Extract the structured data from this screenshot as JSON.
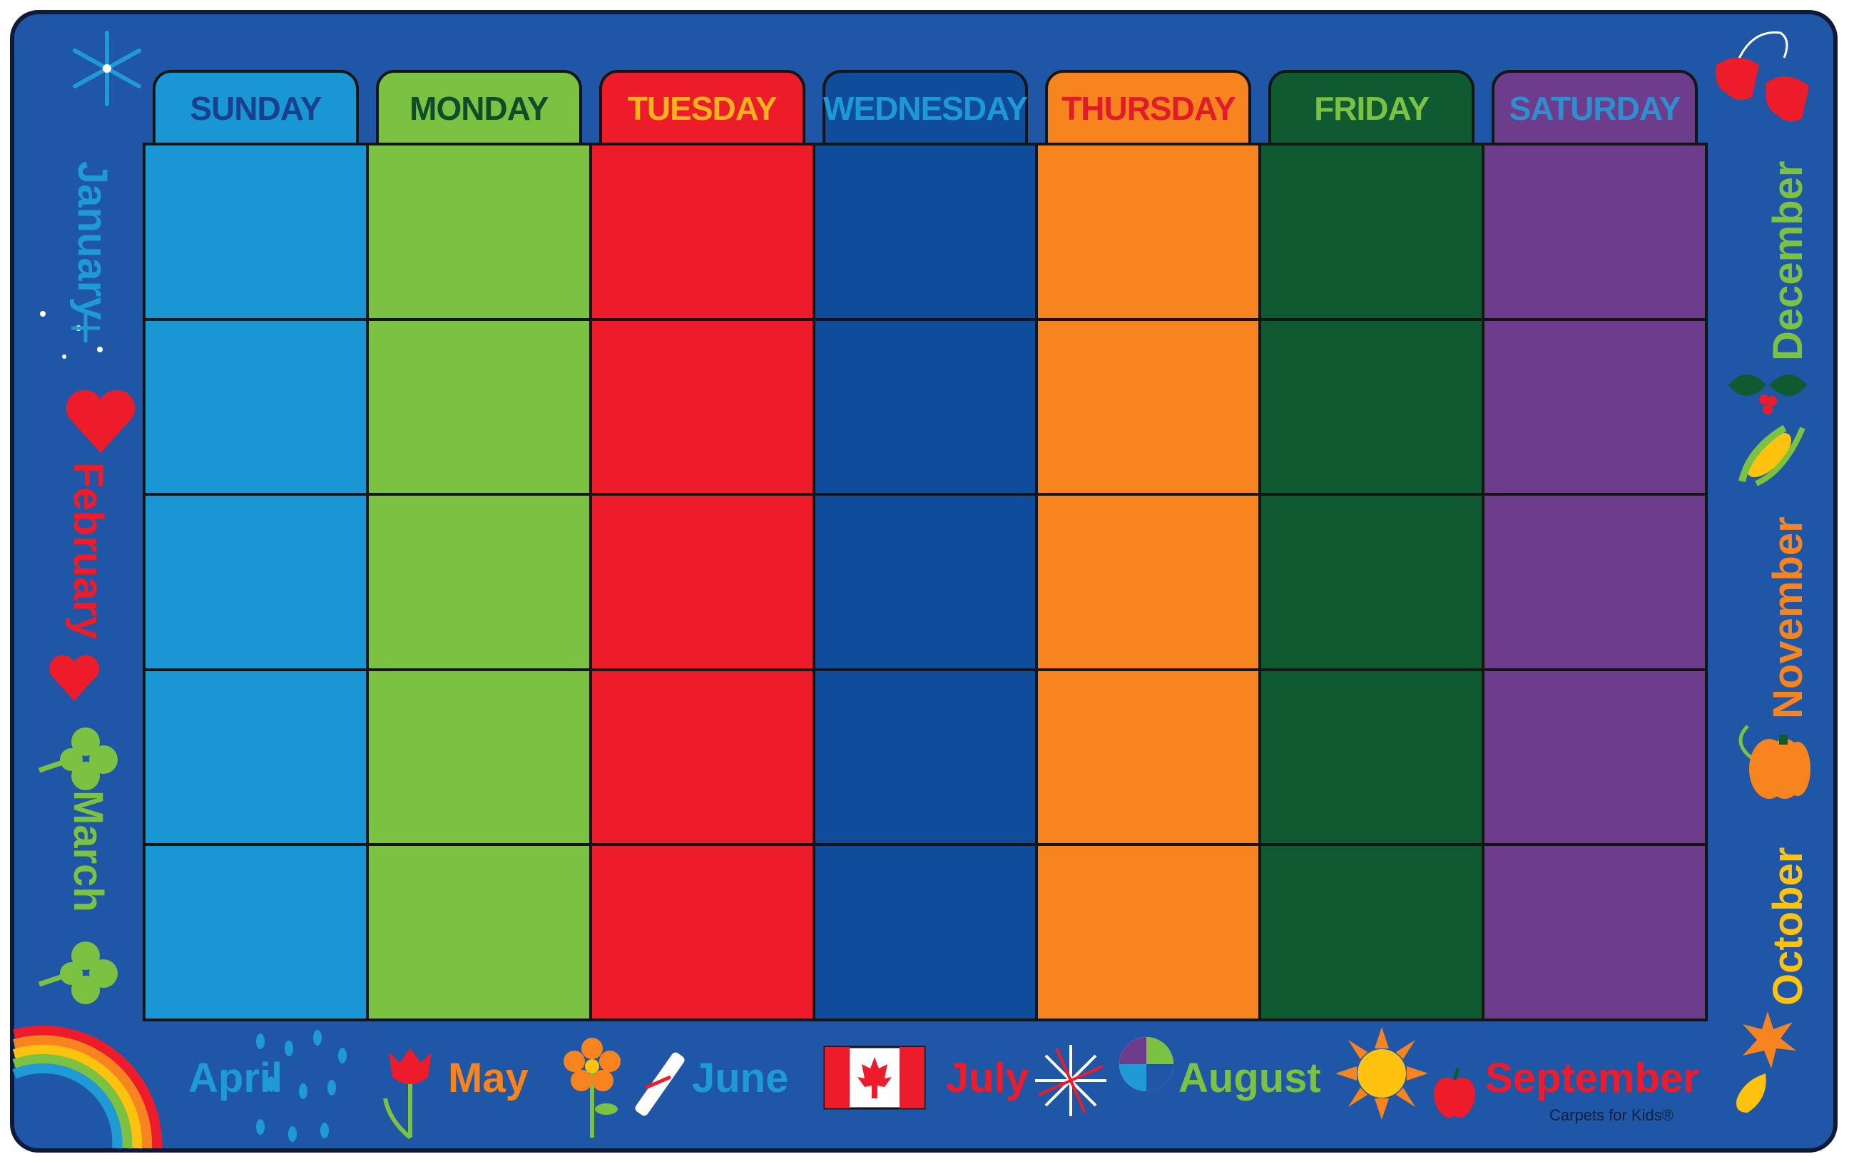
{
  "days": [
    {
      "label": "SUNDAY",
      "tab_bg": "#1996d4",
      "col_bg": "#1996d4",
      "text": "#1a3f8f"
    },
    {
      "label": "MONDAY",
      "tab_bg": "#7cc242",
      "col_bg": "#7cc242",
      "text": "#0f4d2a"
    },
    {
      "label": "TUESDAY",
      "tab_bg": "#ed1c2a",
      "col_bg": "#ed1c2a",
      "text": "#ffb21a"
    },
    {
      "label": "WEDNESDAY",
      "tab_bg": "#0f4d9a",
      "col_bg": "#0f4d9a",
      "text": "#1d9ad6"
    },
    {
      "label": "THURSDAY",
      "tab_bg": "#f7841f",
      "col_bg": "#f7841f",
      "text": "#e21b2a"
    },
    {
      "label": "FRIDAY",
      "tab_bg": "#0f5a30",
      "col_bg": "#0f5a30",
      "text": "#7cc242"
    },
    {
      "label": "SATURDAY",
      "tab_bg": "#6d3d8c",
      "col_bg": "#6d3d8c",
      "text": "#2e8fd0"
    }
  ],
  "rows": 5,
  "months": {
    "january": {
      "label": "January",
      "color": "#1f9ad6"
    },
    "february": {
      "label": "February",
      "color": "#ee1c2a"
    },
    "march": {
      "label": "March",
      "color": "#7cc242"
    },
    "april": {
      "label": "April",
      "color": "#1f9ad6"
    },
    "may": {
      "label": "May",
      "color": "#f7841f"
    },
    "june": {
      "label": "June",
      "color": "#1f9ad6"
    },
    "july": {
      "label": "July",
      "color": "#ee1c2a"
    },
    "august": {
      "label": "August",
      "color": "#7cc242"
    },
    "september": {
      "label": "September",
      "color": "#ee1c2a"
    },
    "october": {
      "label": "October",
      "color": "#ffc20e"
    },
    "november": {
      "label": "November",
      "color": "#f7841f"
    },
    "december": {
      "label": "December",
      "color": "#7cc242"
    }
  },
  "brand": "Carpets for Kids®",
  "colors": {
    "rug_border": "#1f56a6",
    "outline": "#151515"
  },
  "icons": [
    "snowflake-icon",
    "heart-icon",
    "shamrock-icon",
    "rainbow-icon",
    "raindrops-icon",
    "tulip-icon",
    "flower-icon",
    "diploma-icon",
    "canada-flag-icon",
    "firework-icon",
    "beach-ball-icon",
    "sun-icon",
    "apple-icon",
    "leaf-icon",
    "pumpkin-icon",
    "corn-icon",
    "holly-icon",
    "mittens-icon"
  ]
}
